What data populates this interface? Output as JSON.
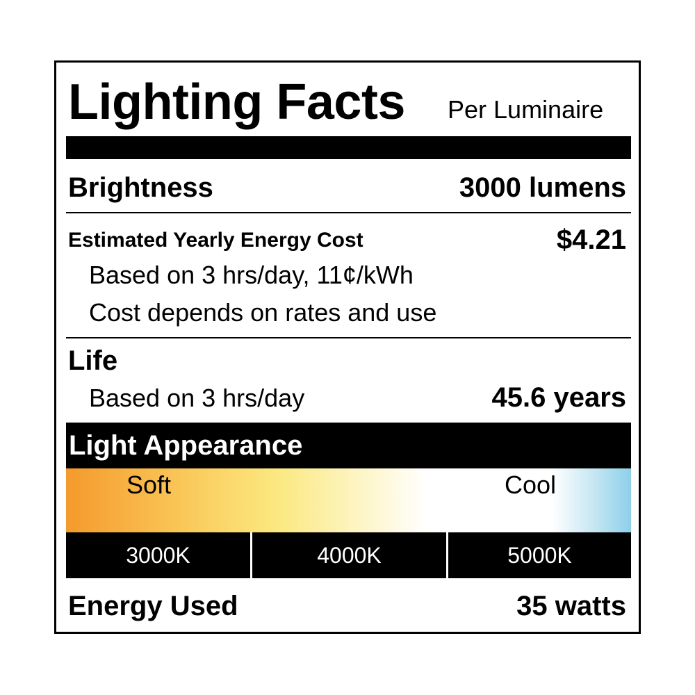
{
  "header": {
    "title": "Lighting Facts",
    "subtitle": "Per Luminaire"
  },
  "brightness": {
    "label": "Brightness",
    "value": "3000 lumens"
  },
  "energy_cost": {
    "label": "Estimated Yearly Energy Cost",
    "value": "$4.21",
    "note1": "Based on 3 hrs/day, 11¢/kWh",
    "note2": "Cost depends on rates and use"
  },
  "life": {
    "label": "Life",
    "note": "Based on 3 hrs/day",
    "value": "45.6 years"
  },
  "appearance": {
    "title": "Light Appearance",
    "soft_label": "Soft",
    "cool_label": "Cool",
    "gradient_colors": [
      "#f49a2c",
      "#fbd568",
      "#ffffff",
      "#8dd0ea"
    ],
    "temperatures": [
      "3000K",
      "4000K",
      "5000K"
    ]
  },
  "energy_used": {
    "label": "Energy Used",
    "value": "35 watts"
  }
}
